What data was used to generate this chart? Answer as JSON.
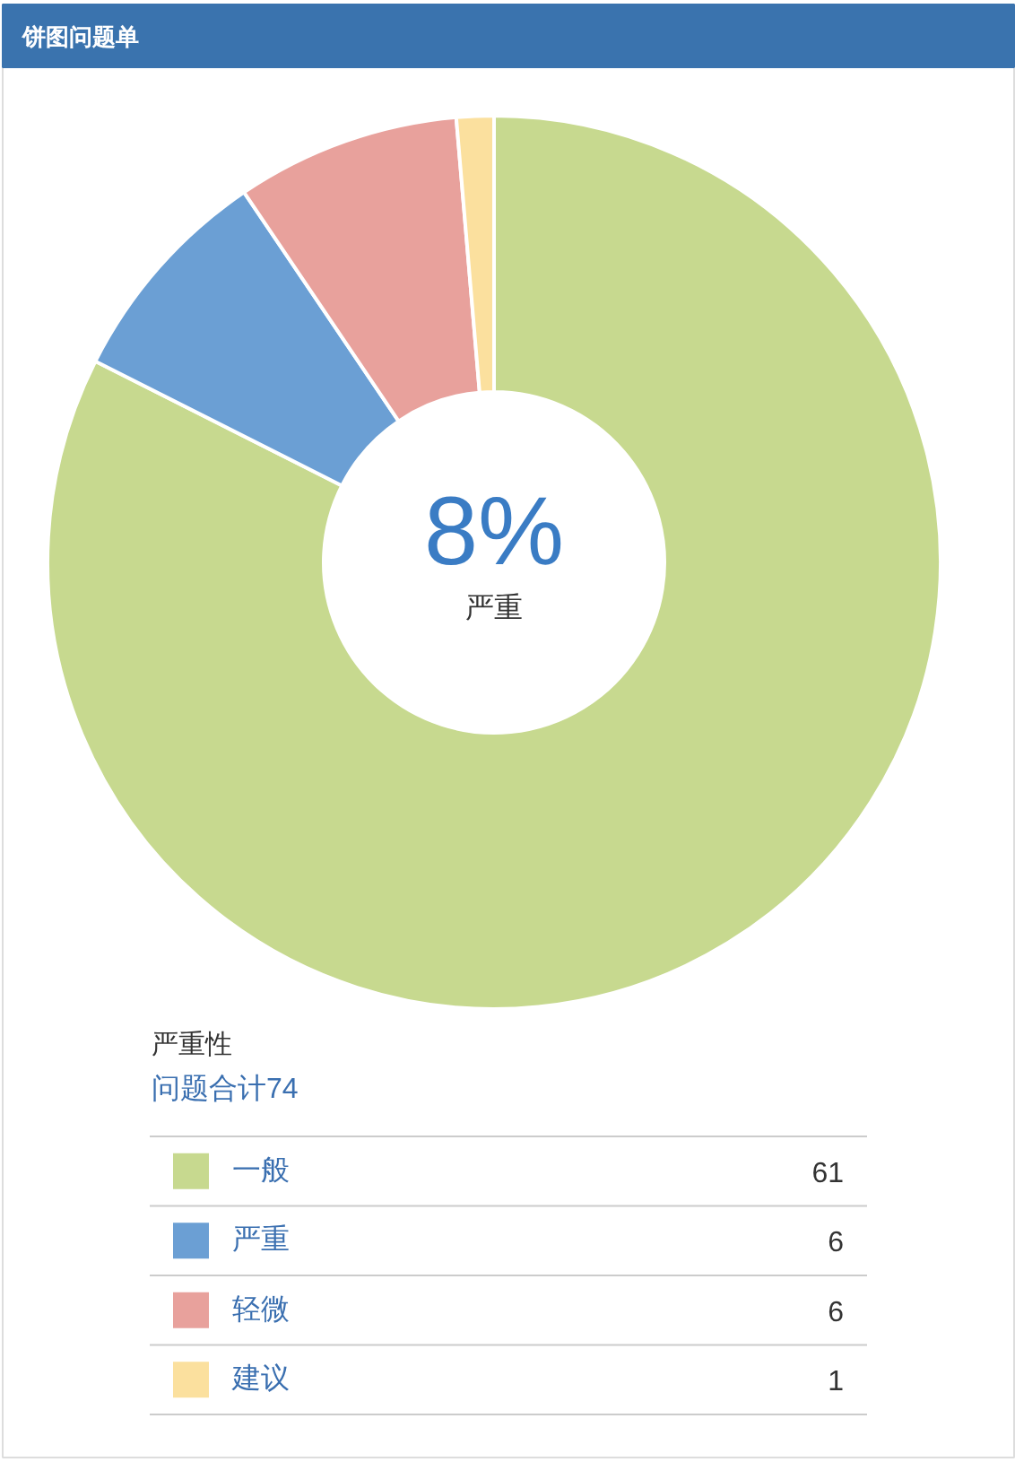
{
  "chart_data": {
    "type": "donut",
    "title": "饼图问题单",
    "categories": [
      "一般",
      "严重",
      "轻微",
      "建议"
    ],
    "values": [
      61,
      6,
      6,
      1
    ],
    "colors": [
      "#c7d98f",
      "#6b9fd4",
      "#e8a19c",
      "#fbe09e"
    ],
    "legend": "bottom",
    "legend_title": "严重性",
    "data_labels": true,
    "annotations": [
      "8%",
      "严重",
      "问题合计74"
    ]
  }
}
